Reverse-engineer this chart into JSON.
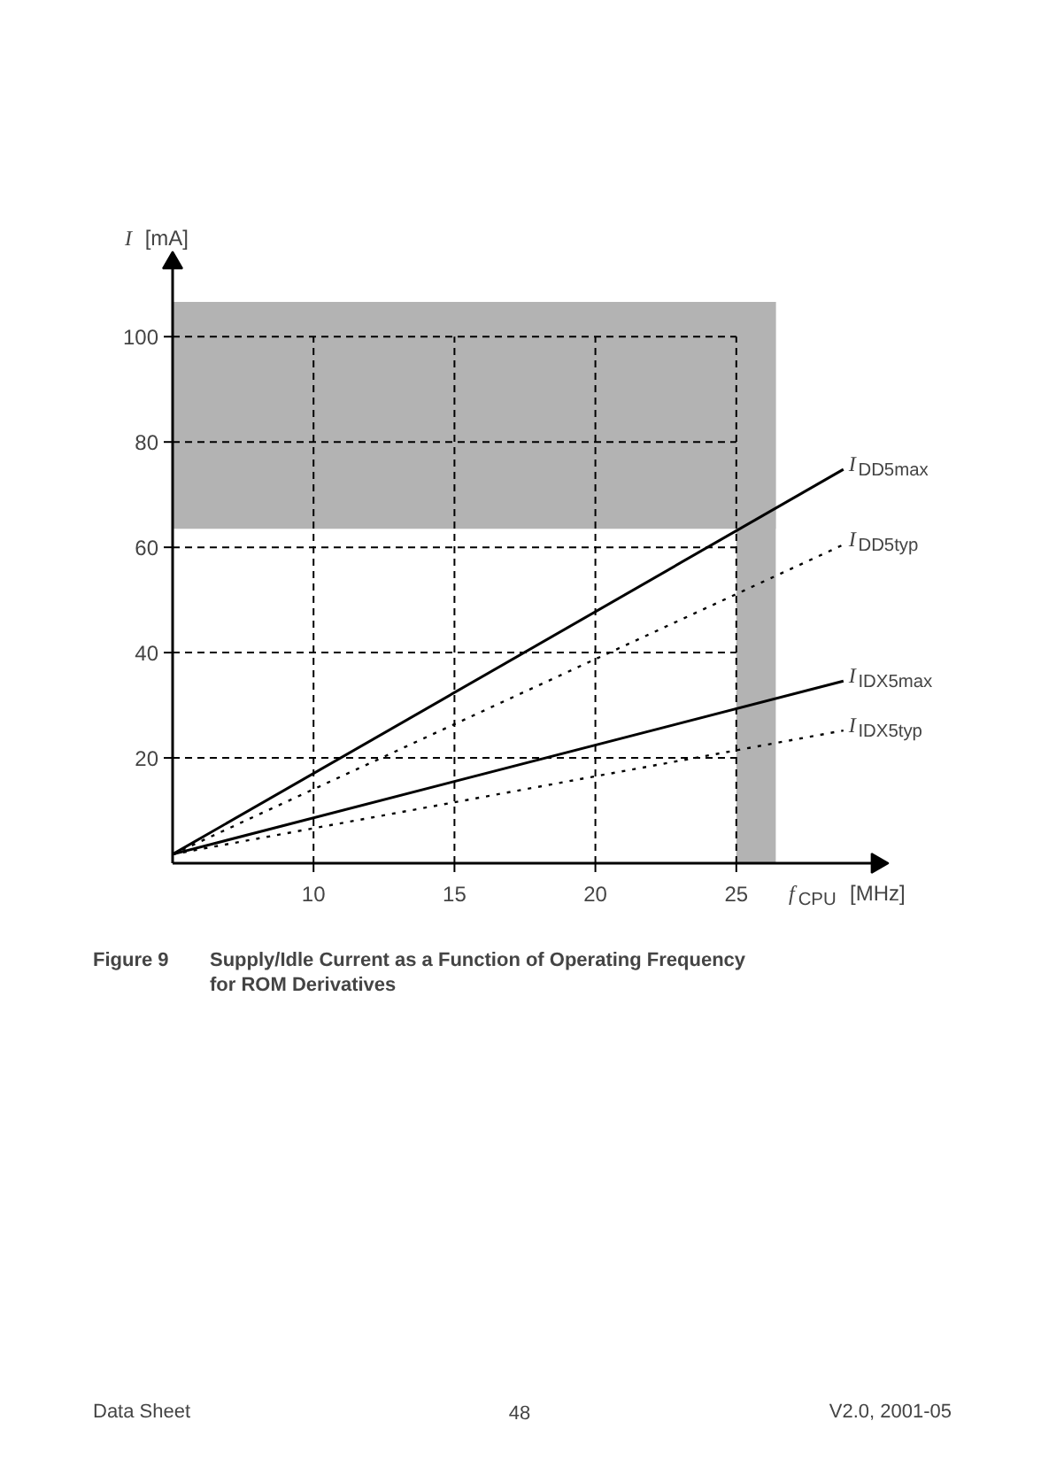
{
  "chart_data": {
    "type": "line",
    "title": "Figure 9    Supply/Idle Current as a Function of Operating Frequency\nfor ROM Derivatives",
    "xlabel": "f$_{CPU}$ [MHz]",
    "ylabel": "I [mA]",
    "xlim": [
      5,
      30
    ],
    "ylim": [
      0,
      114
    ],
    "xticks": [
      10,
      15,
      20,
      25
    ],
    "yticks": [
      20,
      40,
      60,
      80,
      100
    ],
    "grid": true,
    "bands": [
      {
        "axis": "y",
        "from": 63.5,
        "to": 106.6,
        "color": "#b3b3b3"
      },
      {
        "axis": "x",
        "from": 25,
        "to": 26.4,
        "color": "#b3b3b3"
      }
    ],
    "x": [
      5,
      28.8
    ],
    "series": [
      {
        "name": "I$_{DD5max}$",
        "color": "#000000",
        "line_style": "solid",
        "values": [
          1.7,
          74.8
        ]
      },
      {
        "name": "I$_{DD5typ}$",
        "color": "#000000",
        "line_style": "dotted",
        "values": [
          1.7,
          60.5
        ]
      },
      {
        "name": "I$_{IDX5max}$",
        "color": "#000000",
        "line_style": "solid",
        "values": [
          1.7,
          34.6
        ]
      },
      {
        "name": "I$_{IDX5typ}$",
        "color": "#000000",
        "line_style": "dotted",
        "values": [
          1.7,
          25.2
        ]
      }
    ],
    "annotations": [
      "Data Sheet",
      "48",
      "V2.0, 2001-05"
    ]
  }
}
